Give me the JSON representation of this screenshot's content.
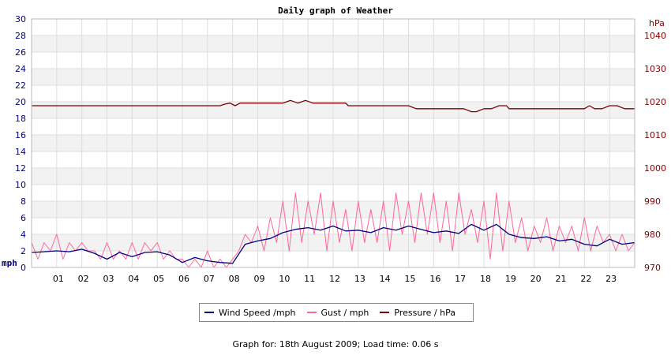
{
  "chart_data": {
    "type": "line",
    "title": "Daily graph of Weather",
    "left_axis": {
      "unit_label": "mph",
      "min": 0,
      "max": 30,
      "ticks": [
        "0",
        "2",
        "4",
        "6",
        "8",
        "10",
        "12",
        "14",
        "16",
        "18",
        "20",
        "22",
        "24",
        "26",
        "28",
        "30"
      ],
      "color": "#000080"
    },
    "right_axis": {
      "unit_label": "hPa",
      "min": 970,
      "max": 1045,
      "ticks": [
        "970",
        "980",
        "990",
        "1000",
        "1010",
        "1020",
        "1030",
        "1040"
      ],
      "color": "#800000"
    },
    "x_axis": {
      "min": 0,
      "max": 24,
      "ticks": [
        "01",
        "02",
        "03",
        "04",
        "05",
        "06",
        "07",
        "08",
        "09",
        "10",
        "11",
        "12",
        "13",
        "14",
        "15",
        "16",
        "17",
        "18",
        "19",
        "20",
        "21",
        "22",
        "23"
      ]
    },
    "grid": true,
    "series": [
      {
        "name": "Wind Speed /mph",
        "axis": "left",
        "color": "#000080",
        "x": [
          0,
          0.5,
          1,
          1.5,
          2,
          2.5,
          3,
          3.5,
          4,
          4.5,
          5,
          5.5,
          6,
          6.5,
          7,
          7.5,
          8,
          8.5,
          9,
          9.5,
          10,
          10.5,
          11,
          11.5,
          12,
          12.5,
          13,
          13.5,
          14,
          14.5,
          15,
          15.5,
          16,
          16.5,
          17,
          17.5,
          18,
          18.5,
          19,
          19.5,
          20,
          20.5,
          21,
          21.5,
          22,
          22.5,
          23,
          23.5,
          24
        ],
        "values": [
          1.8,
          1.9,
          2,
          1.9,
          2.2,
          1.7,
          1,
          1.8,
          1.3,
          1.8,
          1.9,
          1.5,
          0.6,
          1.2,
          0.8,
          0.6,
          0.5,
          2.8,
          3.2,
          3.5,
          4.2,
          4.6,
          4.8,
          4.5,
          5,
          4.4,
          4.5,
          4.2,
          4.8,
          4.5,
          5,
          4.6,
          4.2,
          4.4,
          4.1,
          5.2,
          4.5,
          5.2,
          4,
          3.6,
          3.5,
          3.7,
          3.2,
          3.4,
          2.8,
          2.6,
          3.4,
          2.8,
          3
        ]
      },
      {
        "name": "Gust / mph",
        "axis": "left",
        "color": "#ff6699",
        "x": [
          0,
          0.25,
          0.5,
          0.75,
          1,
          1.25,
          1.5,
          1.75,
          2,
          2.25,
          2.5,
          2.75,
          3,
          3.25,
          3.5,
          3.75,
          4,
          4.25,
          4.5,
          4.75,
          5,
          5.25,
          5.5,
          5.75,
          6,
          6.25,
          6.5,
          6.75,
          7,
          7.25,
          7.5,
          7.75,
          8,
          8.25,
          8.5,
          8.75,
          9,
          9.25,
          9.5,
          9.75,
          10,
          10.25,
          10.5,
          10.75,
          11,
          11.25,
          11.5,
          11.75,
          12,
          12.25,
          12.5,
          12.75,
          13,
          13.25,
          13.5,
          13.75,
          14,
          14.25,
          14.5,
          14.75,
          15,
          15.25,
          15.5,
          15.75,
          16,
          16.25,
          16.5,
          16.75,
          17,
          17.25,
          17.5,
          17.75,
          18,
          18.25,
          18.5,
          18.75,
          19,
          19.25,
          19.5,
          19.75,
          20,
          20.25,
          20.5,
          20.75,
          21,
          21.25,
          21.5,
          21.75,
          22,
          22.25,
          22.5,
          22.75,
          23,
          23.25,
          23.5,
          23.75,
          24
        ],
        "values": [
          3,
          1,
          3,
          2,
          4,
          1,
          3,
          2,
          3,
          2,
          2,
          1,
          3,
          1,
          2,
          1,
          3,
          1,
          3,
          2,
          3,
          1,
          2,
          1,
          1,
          0,
          1,
          0,
          2,
          0,
          1,
          0,
          1,
          2,
          4,
          3,
          5,
          2,
          6,
          3,
          8,
          2,
          9,
          3,
          8,
          4,
          9,
          2,
          8,
          3,
          7,
          2,
          8,
          3,
          7,
          3,
          8,
          2,
          9,
          4,
          8,
          3,
          9,
          4,
          9,
          3,
          8,
          2,
          9,
          4,
          7,
          3,
          8,
          1,
          9,
          2,
          8,
          3,
          6,
          2,
          5,
          3,
          6,
          2,
          5,
          3,
          5,
          2,
          6,
          2,
          5,
          3,
          4,
          2,
          4,
          2,
          3
        ]
      },
      {
        "name": "Pressure / hPa",
        "axis": "right",
        "color": "#800000",
        "x": [
          0,
          7.5,
          7.7,
          7.9,
          8.1,
          8.3,
          10,
          10.3,
          10.6,
          10.9,
          11.2,
          11.5,
          12,
          12.5,
          12.6,
          13,
          14,
          15,
          15.3,
          16,
          17,
          17.2,
          17.5,
          17.7,
          18,
          18.3,
          18.6,
          18.9,
          19,
          20,
          21,
          22,
          22.2,
          22.4,
          22.7,
          23,
          23.3,
          23.6,
          24
        ],
        "values": [
          1018.8,
          1018.8,
          1019.3,
          1019.6,
          1018.8,
          1019.6,
          1019.6,
          1020.4,
          1019.6,
          1020.4,
          1019.6,
          1019.6,
          1019.6,
          1019.6,
          1018.8,
          1018.8,
          1018.8,
          1018.8,
          1017.9,
          1017.9,
          1017.9,
          1017.9,
          1017,
          1017,
          1017.9,
          1017.9,
          1018.8,
          1018.8,
          1017.9,
          1017.9,
          1017.9,
          1017.9,
          1018.8,
          1017.9,
          1017.9,
          1018.8,
          1018.8,
          1017.9,
          1017.9
        ]
      }
    ],
    "footer": "Graph for: 18th August 2009; Load time: 0.06 s"
  }
}
